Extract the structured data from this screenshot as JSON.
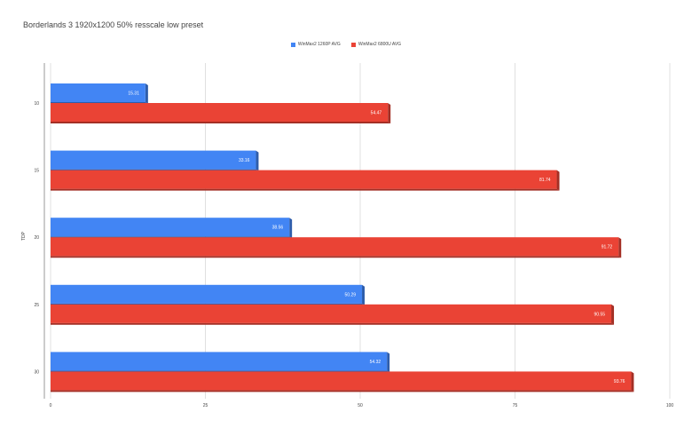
{
  "chart_data": {
    "type": "bar",
    "orientation": "horizontal",
    "title": "Borderlands 3 1920x1200 50% resscale low preset",
    "ylabel": "TDP",
    "xlabel": "",
    "categories": [
      "10",
      "15",
      "20",
      "25",
      "30"
    ],
    "series": [
      {
        "name": "WinMax2 1260P AVG",
        "color": "#4285f4",
        "values": [
          15.31,
          33.16,
          38.56,
          50.29,
          54.32
        ]
      },
      {
        "name": "WinMax2 6800U AVG",
        "color": "#ea4335",
        "values": [
          54.47,
          81.74,
          91.72,
          90.55,
          93.76
        ]
      }
    ],
    "xlim": [
      0,
      100
    ],
    "xticks": [
      "0",
      "25",
      "50",
      "75",
      "100"
    ],
    "grid": true,
    "legend_position": "top"
  }
}
